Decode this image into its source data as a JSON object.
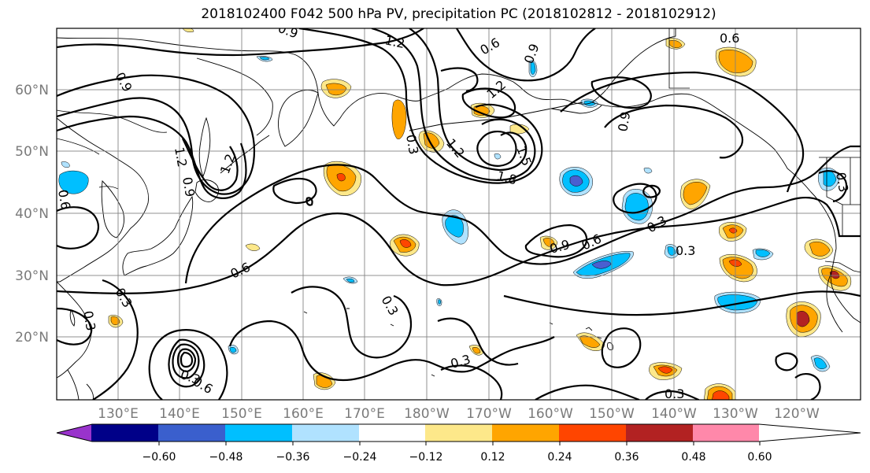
{
  "title": "2018102400 F042 500 hPa PV, precipitation PC (2018102812 - 2018102912)",
  "map": {
    "lon_labels": [
      "130°E",
      "140°E",
      "150°E",
      "160°E",
      "170°E",
      "180°W",
      "170°W",
      "160°W",
      "150°W",
      "140°W",
      "130°W",
      "120°W"
    ],
    "lat_labels": [
      "60°N",
      "50°N",
      "40°N",
      "30°N",
      "20°N"
    ],
    "contour_labels": [
      "1.2",
      "0.6",
      "0.9",
      "1.2",
      "1.2",
      "0.9",
      "0.6",
      "0.9",
      "0.9",
      "1.2",
      "0.9",
      "0.3",
      "1.2",
      "1.5",
      "1.8",
      "0.6",
      "0.6",
      "0.9",
      "0.6",
      "0.3",
      "0.3",
      "0.3",
      "0.3",
      "0.3",
      "0.3",
      "0.3",
      "0.6",
      "0.3",
      "0.3"
    ]
  },
  "colorbar": {
    "ticks": [
      "−0.60",
      "−0.48",
      "−0.36",
      "−0.24",
      "−0.12",
      "0.12",
      "0.24",
      "0.36",
      "0.48",
      "0.60"
    ],
    "colors": [
      "#9933cc",
      "#000088",
      "#3a5fcd",
      "#00bfff",
      "#b0e2ff",
      "#ffffff",
      "#fde88a",
      "#ffa500",
      "#ff4500",
      "#b22222",
      "#ff88aa"
    ]
  },
  "shading_colors": {
    "strong_neg": "#4a5fd0",
    "neg": "#00bfff",
    "weak_neg": "#b0e2ff",
    "weak_pos": "#fde88a",
    "pos": "#ffa500",
    "strong_pos": "#ff4500",
    "very_strong_pos": "#b22222"
  }
}
